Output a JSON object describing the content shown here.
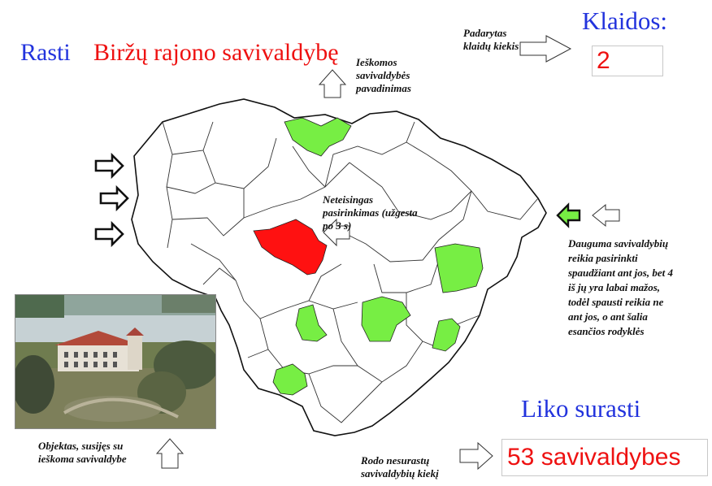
{
  "header": {
    "found_label": "Rasti",
    "target_name": "Biržų rajono savivaldybę"
  },
  "errors": {
    "label": "Klaidos:",
    "count": "2"
  },
  "remaining": {
    "label": "Liko surasti",
    "value": "53 savivaldybes"
  },
  "annotations": {
    "error_count": "Padarytas klaidų kiekis",
    "searched_name": "Ieškomos savivaldybės pavadinimas",
    "wrong_selection": "Neteisingas pasirinkimas (užgesta po 3 s)",
    "small_regions": "Dauguma savivaldybių reikia pasirinkti spaudžiant ant jos, bet 4 iš jų yra labai mažos, todėl spausti reikia ne ant jos, o ant šalia esančios rodyklės",
    "object": "Objektas, susijęs su ieškoma savivaldybe",
    "remaining_count": "Rodo nesurastų savivaldybių kiekį"
  },
  "colors": {
    "found": "#77ee44",
    "wrong": "#ff1111",
    "blue_text": "#2233dd",
    "red_text": "#ee1111"
  },
  "icons": [
    "outline-arrow-right-icon",
    "outline-arrow-left-icon",
    "outline-arrow-up-icon",
    "green-arrow-left-icon"
  ]
}
